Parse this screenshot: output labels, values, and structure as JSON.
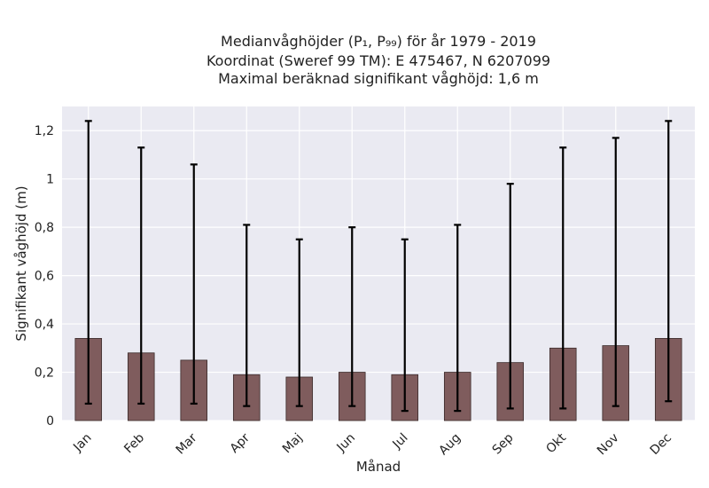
{
  "chart_data": {
    "type": "bar",
    "title_lines": [
      "Medianvåghöjder (P₁, P₉₉) för år 1979 - 2019",
      "Koordinat (Sweref 99 TM): E 475467, N 6207099",
      "Maximal beräknad signifikant våghöjd: 1,6 m"
    ],
    "xlabel": "Månad",
    "ylabel": "Signifikant våghöjd (m)",
    "categories": [
      "Jan",
      "Feb",
      "Mar",
      "Apr",
      "Maj",
      "Jun",
      "Jul",
      "Aug",
      "Sep",
      "Okt",
      "Nov",
      "Dec"
    ],
    "values": [
      0.34,
      0.28,
      0.25,
      0.19,
      0.18,
      0.2,
      0.19,
      0.2,
      0.24,
      0.3,
      0.31,
      0.34
    ],
    "p1": [
      0.07,
      0.07,
      0.07,
      0.06,
      0.06,
      0.06,
      0.04,
      0.04,
      0.05,
      0.05,
      0.06,
      0.08
    ],
    "p99": [
      1.24,
      1.13,
      1.06,
      0.81,
      0.75,
      0.8,
      0.75,
      0.81,
      0.98,
      1.13,
      1.17,
      1.24
    ],
    "yticks": [
      {
        "value": 0,
        "label": "0"
      },
      {
        "value": 0.2,
        "label": "0,2"
      },
      {
        "value": 0.4,
        "label": "0,4"
      },
      {
        "value": 0.6,
        "label": "0,6"
      },
      {
        "value": 0.8,
        "label": "0,8"
      },
      {
        "value": 1.0,
        "label": "1"
      },
      {
        "value": 1.2,
        "label": "1,2"
      }
    ],
    "ylim": [
      0,
      1.3
    ],
    "grid": true,
    "colors": {
      "bar": "#7f5c5d",
      "bar_edge": "#3a2a2a",
      "plot_bg": "#eaeaf2",
      "grid": "#ffffff",
      "errorbar": "#000000"
    }
  }
}
